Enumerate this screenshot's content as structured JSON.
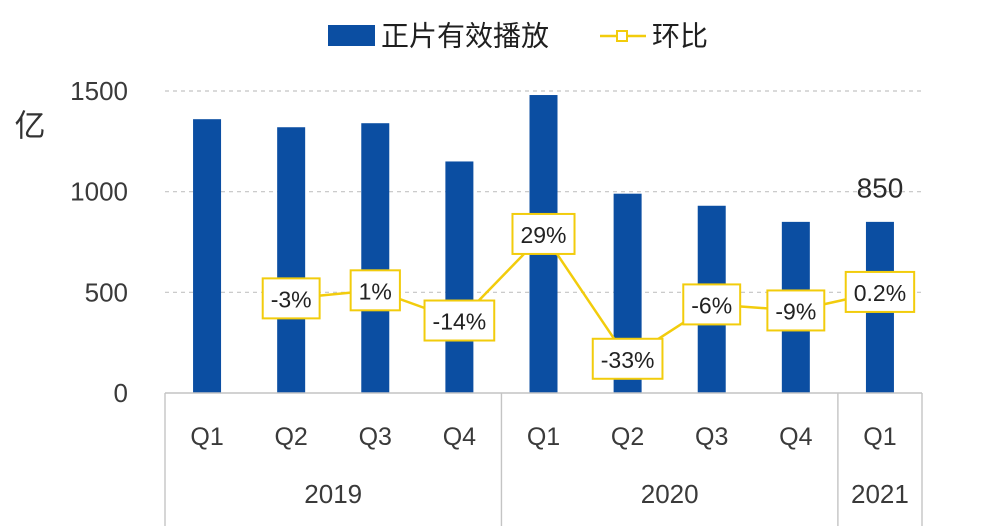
{
  "chart_data": {
    "type": "bar",
    "categories": [
      "Q1",
      "Q2",
      "Q3",
      "Q4",
      "Q1",
      "Q2",
      "Q3",
      "Q4",
      "Q1"
    ],
    "category_groups": [
      {
        "label": "2019",
        "count": 4
      },
      {
        "label": "2020",
        "count": 4
      },
      {
        "label": "2021",
        "count": 1
      }
    ],
    "series": [
      {
        "name": "正片有效播放",
        "type": "bar",
        "values": [
          1360,
          1320,
          1340,
          1150,
          1480,
          990,
          930,
          850,
          850
        ],
        "data_labels": [
          "",
          "",
          "",
          "",
          "",
          "",
          "",
          "",
          "850"
        ],
        "color": "#0B4EA2"
      },
      {
        "name": "环比",
        "type": "line",
        "axis": "secondary",
        "marker": "square",
        "values": [
          null,
          -3,
          1,
          -14,
          29,
          -33,
          -6,
          -9,
          0.2
        ],
        "data_labels": [
          "",
          "-3%",
          "1%",
          "-14%",
          "29%",
          "-33%",
          "-6%",
          "-9%",
          "0.2%"
        ],
        "color": "#F2CC0C"
      }
    ],
    "ylabel": "亿",
    "ylim": [
      0,
      1500
    ],
    "yticks": [
      0,
      500,
      1000,
      1500
    ],
    "y2lim": [
      -50,
      100
    ],
    "grid": true,
    "legend": "top"
  }
}
